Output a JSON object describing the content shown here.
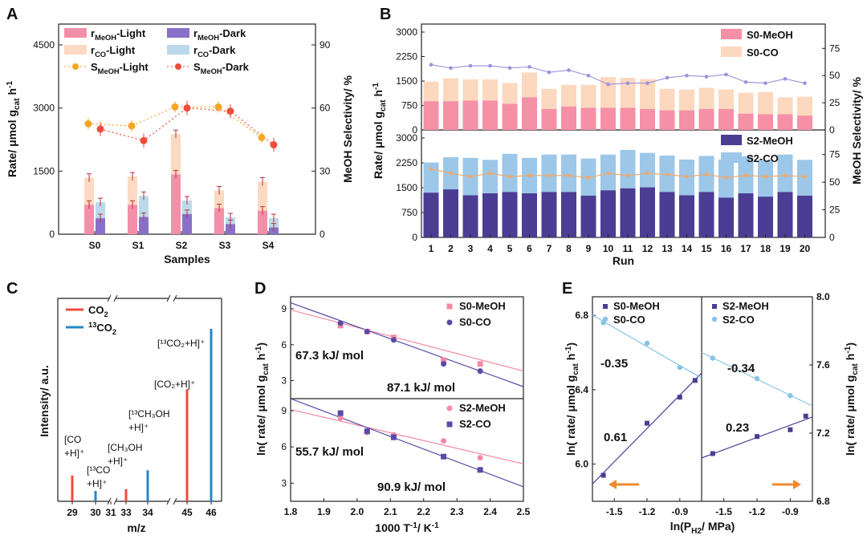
{
  "colors": {
    "meoh_light": "#f38fa8",
    "co_light": "#fcd9c2",
    "meoh_dark": "#8a6fc8",
    "co_dark": "#bcd9ec",
    "sel_light": "#f5a623",
    "sel_dark": "#ee4d3d",
    "s0_meoh": "#f590a6",
    "s0_co": "#fcd8bf",
    "s2_meoh": "#4a3d93",
    "s2_co": "#9cc7e8",
    "sel_line_B": "#9d91d8",
    "sel_line_B2": "#f4a867",
    "ms_co2": "#ee4d3d",
    "ms_13co2": "#2388c8",
    "fit_meoh": "#f58aa2",
    "fit_co": "#5a4aa8",
    "e_meoh": "#4a3d93",
    "e_co": "#87c3e6",
    "arrow": "#f08a2d"
  },
  "chart_data": [
    {
      "panel": "A",
      "type": "bar",
      "xlabel": "Samples",
      "ylabel": "Rate/ μmol g",
      "ylabel_sub": "cat",
      "ylabel_tail": " h",
      "ylabel_sup": "-1",
      "ylabel2": "MeOH Selectivity/ %",
      "categories": [
        "S0",
        "S1",
        "S2",
        "S3",
        "S4"
      ],
      "ylim": [
        0,
        4500
      ],
      "yticks": [
        "0",
        "1500",
        "3000",
        "4500"
      ],
      "y2lim": [
        0,
        90
      ],
      "y2ticks": [
        "0",
        "30",
        "60",
        "90"
      ],
      "legend": [
        "r<sub>MeOH</sub>-Light",
        "r<sub>MeOH</sub>-Dark",
        "r<sub>CO</sub>-Light",
        "r<sub>CO</sub>-Dark",
        "S<sub>MeOH</sub>-Light",
        "S<sub>MeOH</sub>-Dark"
      ],
      "legend_text": [
        {
          "main": "r",
          "sub": "MeOH",
          "tail": "-Light"
        },
        {
          "main": "r",
          "sub": "MeOH",
          "tail": "-Dark"
        },
        {
          "main": "r",
          "sub": "CO",
          "tail": "-Light"
        },
        {
          "main": "r",
          "sub": "CO",
          "tail": "-Dark"
        },
        {
          "main": "S",
          "sub": "MeOH",
          "tail": "-Light"
        },
        {
          "main": "S",
          "sub": "MeOH",
          "tail": "-Dark"
        }
      ],
      "meoh_light": [
        700,
        700,
        1420,
        620,
        560
      ],
      "total_light": [
        1340,
        1370,
        2380,
        1040,
        1250
      ],
      "meoh_dark": [
        380,
        410,
        480,
        240,
        160
      ],
      "total_dark": [
        760,
        910,
        800,
        400,
        380
      ],
      "sel_light": [
        52.5,
        51.5,
        60.5,
        60.5,
        46
      ],
      "sel_dark": [
        50,
        44.5,
        60,
        58.5,
        42.5
      ]
    },
    {
      "panel": "B",
      "type": "bar",
      "xlabel": "Run",
      "ylabel": "Rate/ μmol g",
      "ylabel_sub": "cat",
      "ylabel_tail": " h",
      "ylabel_sup": "-1",
      "ylabel2": "MeOH Selectivity/ %",
      "runs": [
        "1",
        "2",
        "3",
        "4",
        "5",
        "6",
        "7",
        "8",
        "9",
        "10",
        "11",
        "12",
        "13",
        "14",
        "15",
        "16",
        "17",
        "18",
        "19",
        "20"
      ],
      "top": {
        "legend": [
          "S0-MeOH",
          "S0-CO"
        ],
        "ylim": [
          0,
          3000
        ],
        "yticks": [
          "0",
          "750",
          "1500",
          "2250",
          "3000"
        ],
        "y2ticks": [
          "0",
          "25",
          "50",
          "75"
        ],
        "meoh": [
          880,
          880,
          900,
          900,
          800,
          1000,
          640,
          720,
          680,
          680,
          680,
          640,
          600,
          600,
          640,
          640,
          500,
          480,
          480,
          440
        ],
        "total": [
          1480,
          1580,
          1550,
          1550,
          1440,
          1760,
          1260,
          1380,
          1380,
          1620,
          1600,
          1560,
          1260,
          1240,
          1290,
          1240,
          1140,
          1160,
          1000,
          1020
        ],
        "selectivity": [
          60,
          57,
          59,
          59,
          57,
          58,
          53,
          55,
          50,
          42,
          43,
          43,
          48,
          50,
          49,
          51,
          44,
          43,
          47,
          43
        ]
      },
      "bottom": {
        "legend": [
          "S2-MeOH",
          "S2-CO"
        ],
        "ylim": [
          0,
          3000
        ],
        "yticks": [
          "0",
          "750",
          "1500",
          "2250",
          "3000"
        ],
        "y2ticks": [
          "0",
          "25",
          "50",
          "75"
        ],
        "meoh": [
          1350,
          1450,
          1270,
          1330,
          1370,
          1330,
          1370,
          1370,
          1260,
          1420,
          1480,
          1510,
          1370,
          1270,
          1370,
          1200,
          1330,
          1230,
          1370,
          1260
        ],
        "total": [
          2260,
          2420,
          2400,
          2340,
          2520,
          2400,
          2500,
          2500,
          2380,
          2500,
          2640,
          2550,
          2470,
          2350,
          2460,
          2350,
          2450,
          2330,
          2500,
          2340
        ],
        "selectivity": [
          62,
          58,
          55,
          58,
          55,
          56,
          56,
          56,
          54,
          58,
          56,
          58,
          57,
          55,
          57,
          54,
          56,
          55,
          56,
          55
        ]
      }
    },
    {
      "panel": "C",
      "type": "bar",
      "xlabel": "m/z",
      "ylabel": "Intensity/ a.u.",
      "xticks": [
        "29",
        "30",
        "31",
        "33",
        "34",
        "45",
        "46"
      ],
      "legend": [
        {
          "main": "CO",
          "sub": "2",
          "sup": ""
        },
        {
          "main": "CO",
          "sub": "2",
          "sup": "13"
        }
      ],
      "peaks_co2": [
        {
          "mz": 29,
          "h": 0.15
        },
        {
          "mz": 33,
          "h": 0.07
        },
        {
          "mz": 45,
          "h": 0.65
        }
      ],
      "peaks_13co2": [
        {
          "mz": 30,
          "h": 0.06
        },
        {
          "mz": 34,
          "h": 0.18
        },
        {
          "mz": 46,
          "h": 1.0
        }
      ],
      "labels": [
        {
          "lines": [
            "[CO",
            "+H]⁺"
          ],
          "color": "red"
        },
        {
          "lines": [
            "[¹³CO",
            "+H]⁺"
          ],
          "color": "blue"
        },
        {
          "lines": [
            "[CH₃OH",
            "+H]⁺"
          ],
          "color": "red"
        },
        {
          "lines": [
            "[¹³CH₃OH",
            "+H]⁺"
          ],
          "color": "blue"
        },
        {
          "lines": [
            "[CO₂+H]⁺"
          ],
          "color": "red"
        },
        {
          "lines": [
            "[¹³CO₂+H]⁺"
          ],
          "color": "blue"
        }
      ]
    },
    {
      "panel": "D",
      "type": "scatter",
      "xlabel": "1000 T",
      "xlabel_sup": "-1",
      "xlabel_tail": "/ K",
      "xlabel_sup2": "-1",
      "ylabel": "ln( rate/ μmol g",
      "ylabel_sub": "cat",
      "ylabel_tail": " h",
      "ylabel_sup": "-1",
      "ylabel_end": ")",
      "xlim": [
        1.8,
        2.5
      ],
      "xticks": [
        "1.8",
        "1.9",
        "2.0",
        "2.1",
        "2.2",
        "2.3",
        "2.4",
        "2.5"
      ],
      "ylim": [
        1.5,
        10
      ],
      "yticks": [
        "3",
        "6",
        "9"
      ],
      "top": {
        "legend": [
          "S0-MeOH",
          "S0-CO"
        ],
        "series": [
          {
            "name": "S0-MeOH",
            "x": [
              1.95,
              2.03,
              2.11,
              2.26,
              2.37
            ],
            "y": [
              7.6,
              7.1,
              6.6,
              4.7,
              4.4
            ]
          },
          {
            "name": "S0-CO",
            "x": [
              1.95,
              2.03,
              2.11,
              2.26,
              2.37
            ],
            "y": [
              7.8,
              7.1,
              6.4,
              4.4,
              3.8
            ]
          }
        ],
        "fit_meoh": [
          [
            1.8,
            8.9
          ],
          [
            2.5,
            3.8
          ]
        ],
        "fit_co": [
          [
            1.8,
            9.5
          ],
          [
            2.5,
            2.5
          ]
        ],
        "ea_meoh": "67.3 kJ/ mol",
        "ea_co": "87.1 kJ/ mol"
      },
      "bottom": {
        "legend": [
          "S2-MeOH",
          "S2-CO"
        ],
        "series": [
          {
            "name": "S2-MeOH",
            "x": [
              1.95,
              2.03,
              2.11,
              2.26,
              2.37
            ],
            "y": [
              8.4,
              7.2,
              7.0,
              6.5,
              5.1
            ]
          },
          {
            "name": "S2-CO",
            "x": [
              1.95,
              2.03,
              2.11,
              2.26,
              2.37
            ],
            "y": [
              8.8,
              7.3,
              6.8,
              5.2,
              4.1
            ]
          }
        ],
        "fit_meoh": [
          [
            1.8,
            9.1
          ],
          [
            2.5,
            4.6
          ]
        ],
        "fit_co": [
          [
            1.8,
            10.0
          ],
          [
            2.5,
            2.7
          ]
        ],
        "ea_meoh": "55.7 kJ/ mol",
        "ea_co": "90.9 kJ/ mol"
      }
    },
    {
      "panel": "E",
      "type": "scatter",
      "xlabel": "ln(P",
      "xlabel_sub": "H2",
      "xlabel_tail": "/ MPa)",
      "ylabel": "ln( rate/ μmol g",
      "ylabel_sub": "cat",
      "ylabel_tail": " h",
      "ylabel_sup": "-1",
      "ylabel_end": ")",
      "xticks": [
        "-1.5",
        "-1.2",
        "-0.9"
      ],
      "left": {
        "legend": [
          "S0-MeOH",
          "S0-CO"
        ],
        "ylim": [
          5.8,
          6.9
        ],
        "yticks": [
          "6.0",
          "6.4",
          "6.8"
        ],
        "meoh": {
          "x": [
            -1.6,
            -1.2,
            -0.9,
            -0.76
          ],
          "y": [
            5.94,
            6.22,
            6.36,
            6.45
          ]
        },
        "co": {
          "x": [
            -1.6,
            -1.2,
            -0.9
          ],
          "y": [
            6.76,
            6.65,
            6.52
          ]
        },
        "slope_meoh": "0.61",
        "slope_co": "-0.35"
      },
      "right": {
        "legend": [
          "S2-MeOH",
          "S2-CO"
        ],
        "ylim": [
          6.8,
          8.0
        ],
        "yticks": [
          "6.8",
          "7.2",
          "7.6",
          "8.0"
        ],
        "meoh": {
          "x": [
            -1.6,
            -1.2,
            -0.9,
            -0.76
          ],
          "y": [
            7.08,
            7.18,
            7.22,
            7.3
          ]
        },
        "co": {
          "x": [
            -1.6,
            -1.2,
            -0.9
          ],
          "y": [
            7.64,
            7.52,
            7.42
          ]
        },
        "slope_meoh": "0.23",
        "slope_co": "-0.34"
      }
    }
  ]
}
